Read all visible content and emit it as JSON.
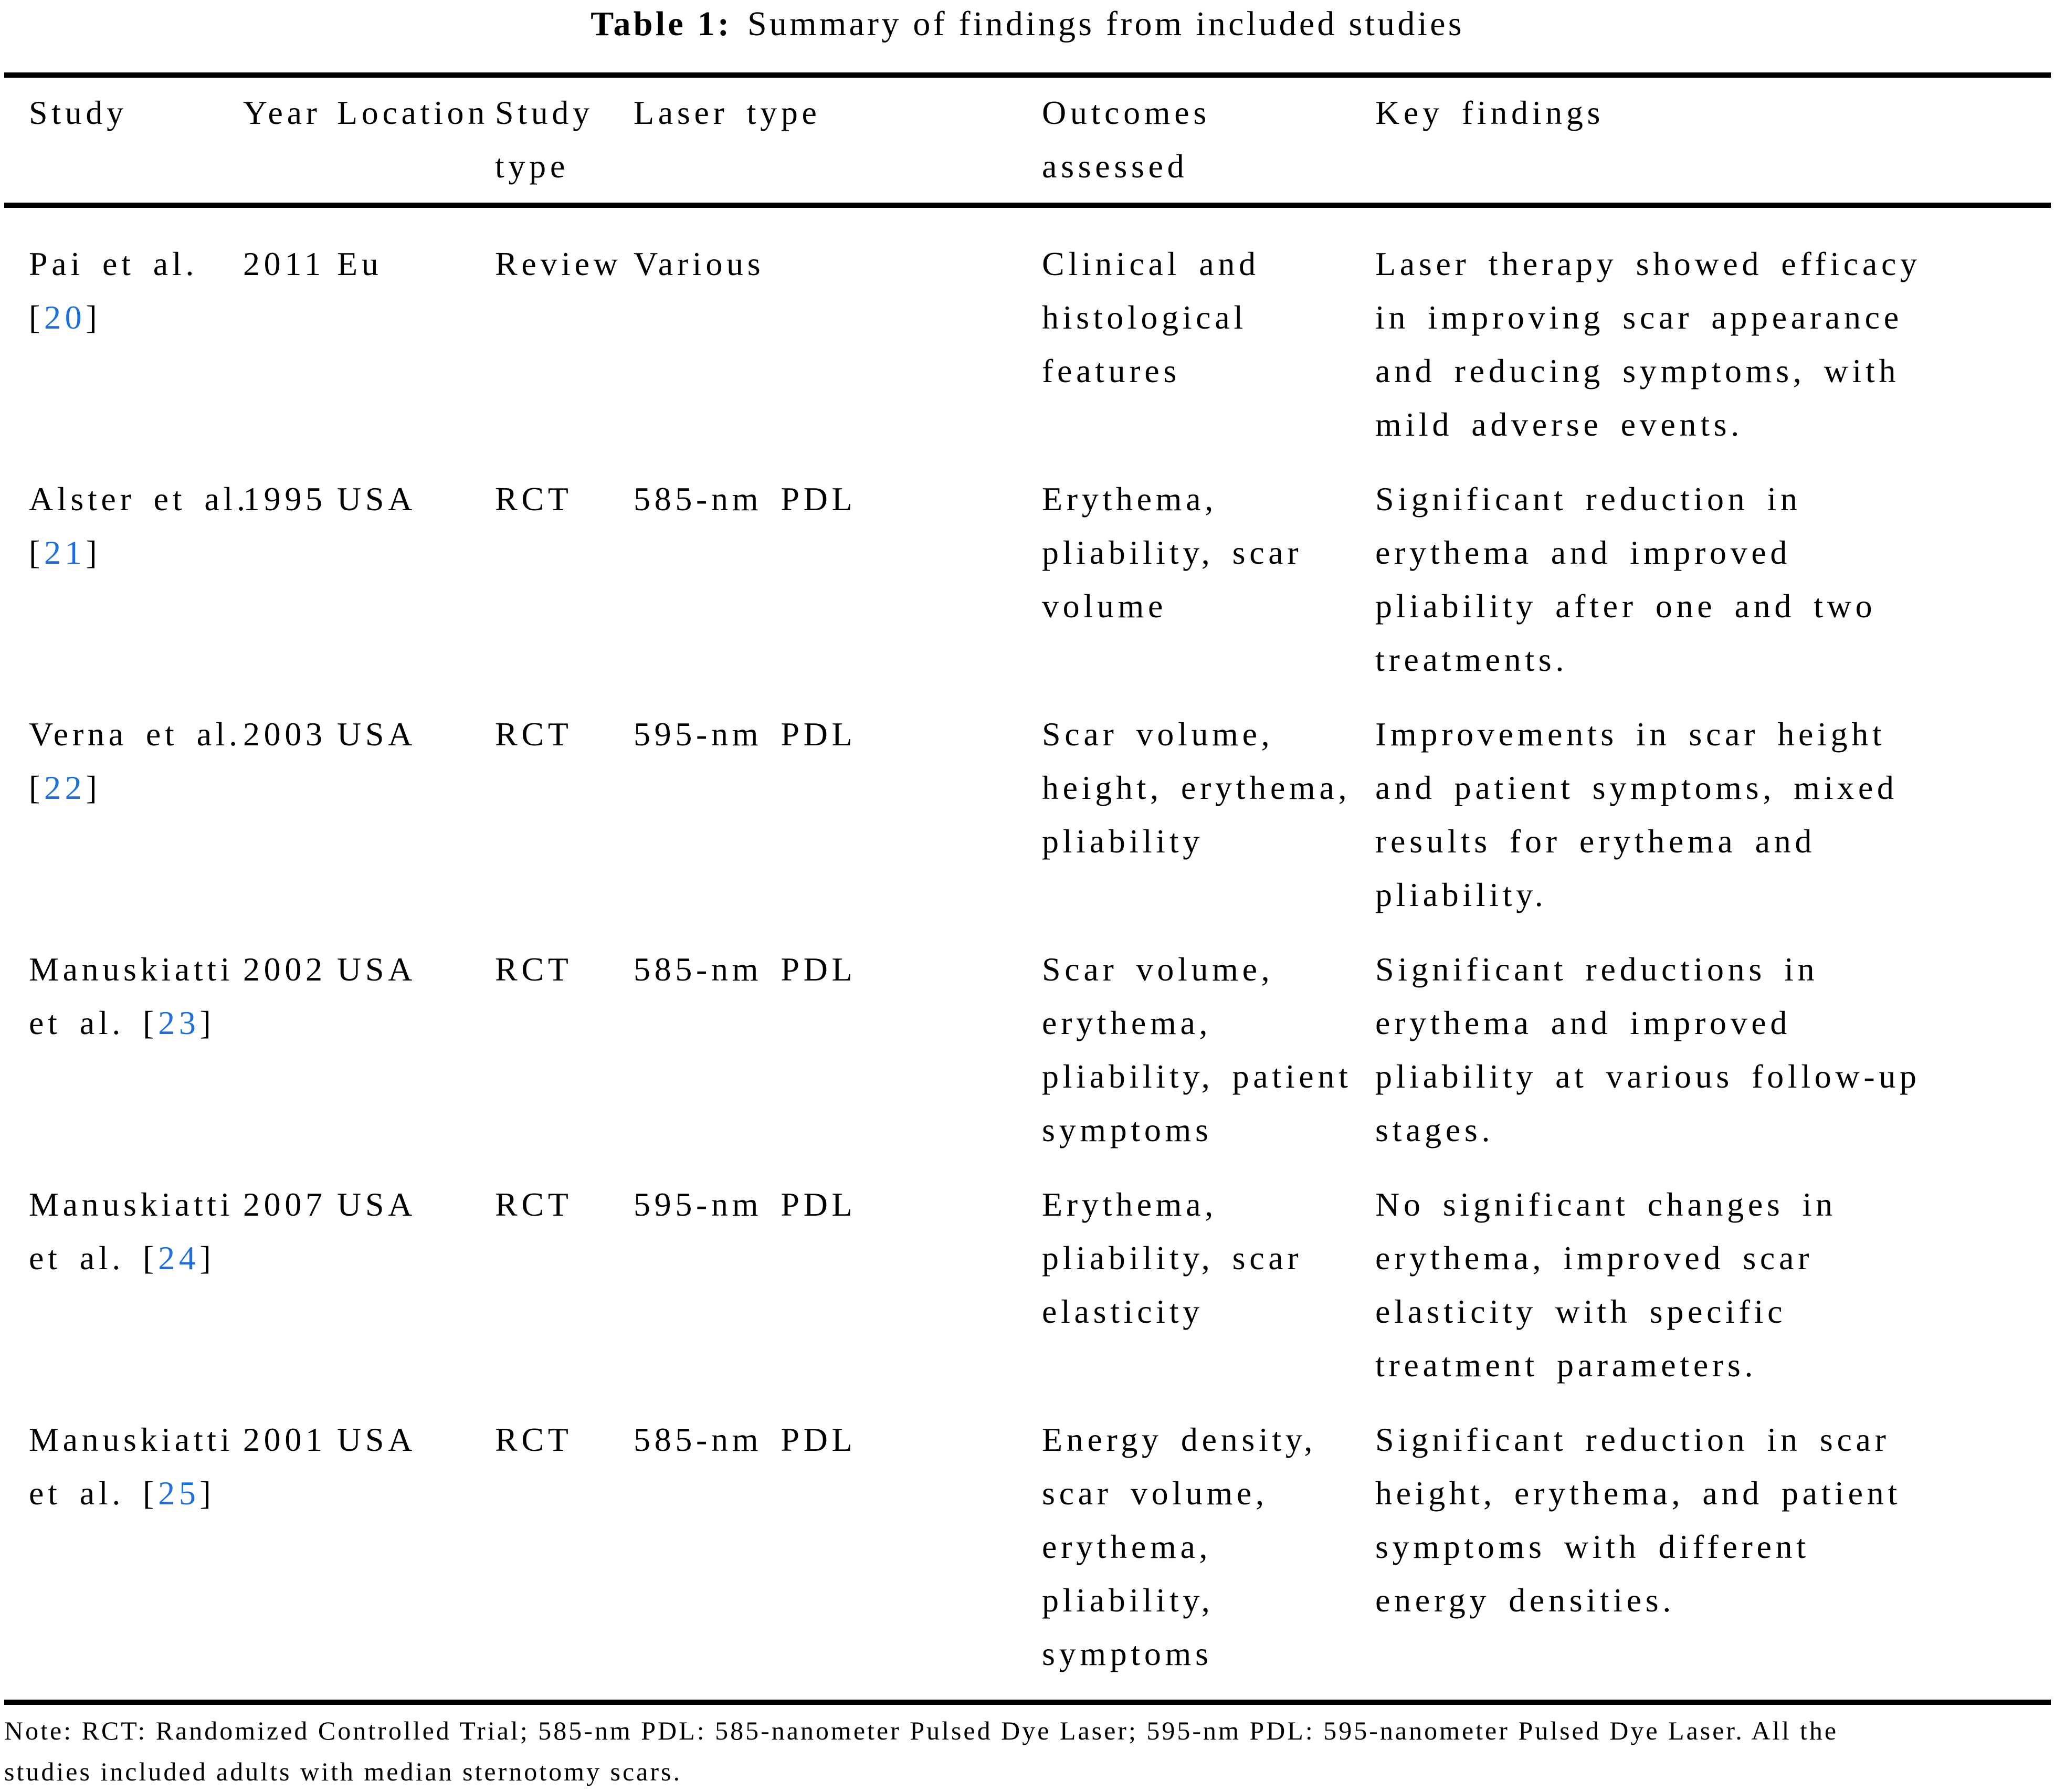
{
  "title": {
    "label": "Table 1:",
    "text": "Summary of findings from included studies"
  },
  "columns": [
    "Study",
    "Year",
    "Location",
    "Study\ntype",
    "Laser type",
    "Outcomes\nassessed",
    "Key findings"
  ],
  "rows": [
    {
      "study_line1": "Pai et al.\n",
      "ref_before": "[",
      "ref": "20",
      "ref_after": "]",
      "year": "2011",
      "location": "Eu",
      "study_type": "Review",
      "laser_type": "Various",
      "outcomes": "Clinical and\nhistological\nfeatures",
      "key_findings": "Laser therapy showed efficacy\nin improving scar appearance\nand reducing symptoms, with\nmild adverse events."
    },
    {
      "study_line1": "Alster et al.\n",
      "ref_before": "[",
      "ref": "21",
      "ref_after": "]",
      "year": "1995",
      "location": "USA",
      "study_type": "RCT",
      "laser_type": "585-nm PDL",
      "outcomes": "Erythema,\npliability, scar\nvolume",
      "key_findings": "Significant reduction in\nerythema and improved\npliability after one and two\ntreatments."
    },
    {
      "study_line1": "Verna et al.\n",
      "ref_before": "[",
      "ref": "22",
      "ref_after": "]",
      "year": "2003",
      "location": "USA",
      "study_type": "RCT",
      "laser_type": "595-nm PDL",
      "outcomes": "Scar volume,\nheight, erythema,\npliability",
      "key_findings": "Improvements in scar height\nand patient symptoms, mixed\nresults for erythema and\npliability."
    },
    {
      "study_line1": "Manuskiatti\n",
      "ref_before": "et al. [",
      "ref": "23",
      "ref_after": "]",
      "year": "2002",
      "location": "USA",
      "study_type": "RCT",
      "laser_type": "585-nm PDL",
      "outcomes": "Scar volume,\nerythema,\npliability, patient\nsymptoms",
      "key_findings": "Significant reductions in\nerythema and improved\npliability at various follow-up\nstages."
    },
    {
      "study_line1": "Manuskiatti\n",
      "ref_before": "et al. [",
      "ref": "24",
      "ref_after": "]",
      "year": "2007",
      "location": "USA",
      "study_type": "RCT",
      "laser_type": "595-nm PDL",
      "outcomes": "Erythema,\npliability, scar\nelasticity",
      "key_findings": "No significant changes in\nerythema, improved scar\nelasticity with specific\ntreatment parameters."
    },
    {
      "study_line1": "Manuskiatti\n",
      "ref_before": "et al. [",
      "ref": "25",
      "ref_after": "]",
      "year": "2001",
      "location": "USA",
      "study_type": "RCT",
      "laser_type": "585-nm PDL",
      "outcomes": "Energy density,\nscar volume,\nerythema,\npliability,\nsymptoms",
      "key_findings": "Significant reduction in scar\nheight, erythema, and patient\nsymptoms with different\nenergy densities."
    }
  ],
  "note": "Note: RCT: Randomized Controlled Trial; 585-nm PDL: 585-nanometer Pulsed Dye Laser; 595-nm PDL: 595-nanometer Pulsed Dye Laser. All the\nstudies included adults with median sternotomy scars.",
  "colors": {
    "citation_blue": "#1c6ed8",
    "text": "#000000",
    "background": "#ffffff"
  }
}
